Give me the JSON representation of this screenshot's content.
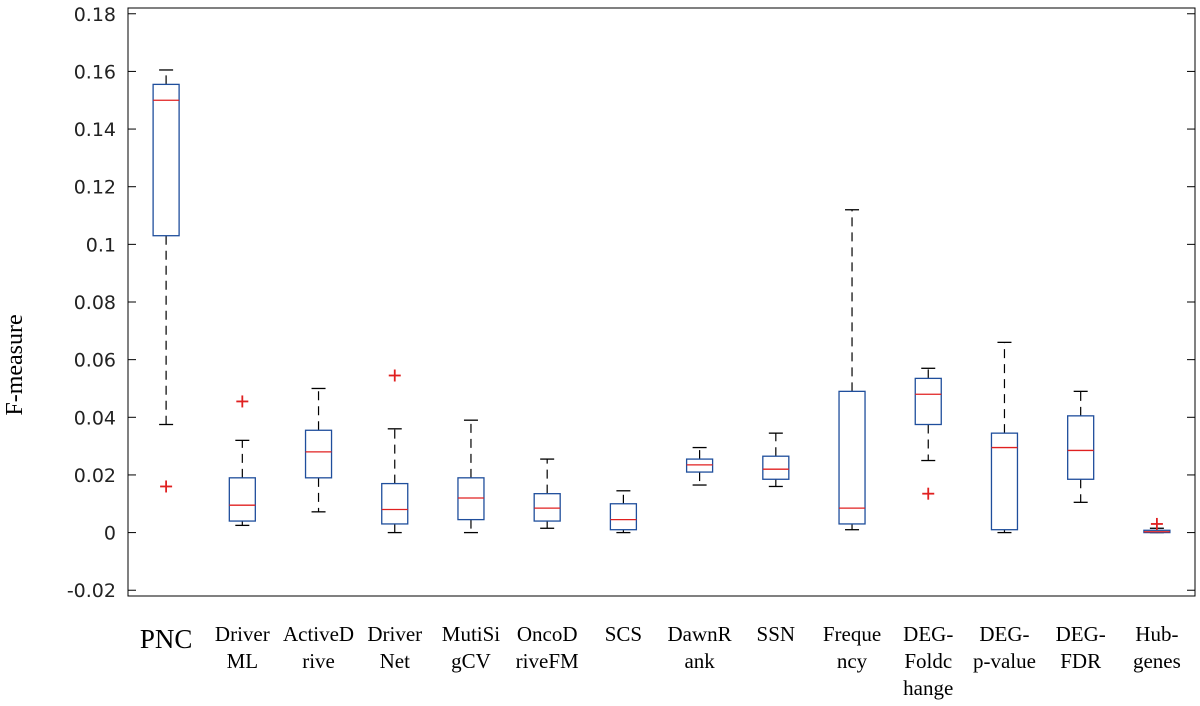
{
  "chart_data": {
    "type": "box",
    "title": "",
    "xlabel": "",
    "ylabel": "F-measure",
    "ylim": [
      -0.022,
      0.182
    ],
    "yticks": [
      -0.02,
      0,
      0.02,
      0.04,
      0.06,
      0.08,
      0.1,
      0.12,
      0.14,
      0.16,
      0.18
    ],
    "ytick_labels": [
      "-0.02",
      "0",
      "0.02",
      "0.04",
      "0.06",
      "0.08",
      "0.1",
      "0.12",
      "0.14",
      "0.16",
      "0.18"
    ],
    "box_color": "#1f4e9c",
    "median_color": "#e02020",
    "whisker_color": "#000000",
    "outlier_color": "#e02020",
    "categories": [
      {
        "name": "PNC",
        "label_lines": [
          "PNC"
        ],
        "whisker_low": 0.0375,
        "q1": 0.103,
        "median": 0.15,
        "q3": 0.1555,
        "whisker_high": 0.1605,
        "outliers": [
          0.016
        ]
      },
      {
        "name": "DriverML",
        "label_lines": [
          "Driver",
          "ML"
        ],
        "whisker_low": 0.0025,
        "q1": 0.004,
        "median": 0.0095,
        "q3": 0.019,
        "whisker_high": 0.032,
        "outliers": [
          0.0455
        ]
      },
      {
        "name": "ActiveDrive",
        "label_lines": [
          "ActiveD",
          "rive"
        ],
        "whisker_low": 0.0072,
        "q1": 0.019,
        "median": 0.028,
        "q3": 0.0355,
        "whisker_high": 0.05,
        "outliers": []
      },
      {
        "name": "DriverNet",
        "label_lines": [
          "Driver",
          "Net"
        ],
        "whisker_low": 0.0,
        "q1": 0.003,
        "median": 0.008,
        "q3": 0.017,
        "whisker_high": 0.036,
        "outliers": [
          0.0545
        ]
      },
      {
        "name": "MutiSigCV",
        "label_lines": [
          "MutiSi",
          "gCV"
        ],
        "whisker_low": 0.0,
        "q1": 0.0045,
        "median": 0.012,
        "q3": 0.019,
        "whisker_high": 0.039,
        "outliers": []
      },
      {
        "name": "OncoDriveFM",
        "label_lines": [
          "OncoD",
          "riveFM"
        ],
        "whisker_low": 0.0015,
        "q1": 0.004,
        "median": 0.0085,
        "q3": 0.0135,
        "whisker_high": 0.0255,
        "outliers": []
      },
      {
        "name": "SCS",
        "label_lines": [
          "SCS"
        ],
        "whisker_low": 0.0,
        "q1": 0.001,
        "median": 0.0045,
        "q3": 0.01,
        "whisker_high": 0.0145,
        "outliers": []
      },
      {
        "name": "DawnRank",
        "label_lines": [
          "DawnR",
          "ank"
        ],
        "whisker_low": 0.0165,
        "q1": 0.021,
        "median": 0.0235,
        "q3": 0.0255,
        "whisker_high": 0.0295,
        "outliers": []
      },
      {
        "name": "SSN",
        "label_lines": [
          "SSN"
        ],
        "whisker_low": 0.016,
        "q1": 0.0185,
        "median": 0.022,
        "q3": 0.0265,
        "whisker_high": 0.0345,
        "outliers": []
      },
      {
        "name": "Frequency",
        "label_lines": [
          "Freque",
          "ncy"
        ],
        "whisker_low": 0.001,
        "q1": 0.003,
        "median": 0.0085,
        "q3": 0.049,
        "whisker_high": 0.112,
        "outliers": []
      },
      {
        "name": "DEG-Foldchange",
        "label_lines": [
          "DEG-",
          "Foldc",
          "hange"
        ],
        "whisker_low": 0.025,
        "q1": 0.0375,
        "median": 0.048,
        "q3": 0.0535,
        "whisker_high": 0.057,
        "outliers": [
          0.0135
        ]
      },
      {
        "name": "DEG-p-value",
        "label_lines": [
          "DEG-",
          "p-value"
        ],
        "whisker_low": 0.0,
        "q1": 0.001,
        "median": 0.0295,
        "q3": 0.0345,
        "whisker_high": 0.066,
        "outliers": []
      },
      {
        "name": "DEG-FDR",
        "label_lines": [
          "DEG-",
          "FDR"
        ],
        "whisker_low": 0.0105,
        "q1": 0.0185,
        "median": 0.0285,
        "q3": 0.0405,
        "whisker_high": 0.049,
        "outliers": []
      },
      {
        "name": "Hub-genes",
        "label_lines": [
          "Hub-",
          "genes"
        ],
        "whisker_low": 0.0,
        "q1": 0.0,
        "median": 0.0003,
        "q3": 0.0008,
        "whisker_high": 0.0015,
        "outliers": [
          0.003
        ]
      }
    ]
  }
}
